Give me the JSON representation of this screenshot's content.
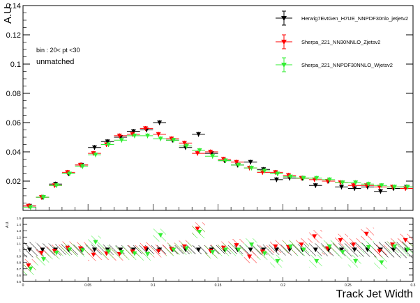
{
  "chart_data": [
    {
      "type": "scatter",
      "ylabel": "A.U.",
      "xlim": [
        0,
        0.3
      ],
      "ylim": [
        0,
        0.14
      ],
      "yticks": [
        "0",
        "0.02",
        "0.04",
        "0.06",
        "0.08",
        "0.1",
        "0.12",
        "0.14"
      ],
      "annotations": [
        "bin : 20< pt <30",
        "unmatched"
      ],
      "legend_position": "top-right",
      "x": [
        0.005,
        0.015,
        0.025,
        0.035,
        0.045,
        0.055,
        0.065,
        0.075,
        0.085,
        0.095,
        0.105,
        0.115,
        0.125,
        0.135,
        0.145,
        0.155,
        0.165,
        0.175,
        0.185,
        0.195,
        0.205,
        0.215,
        0.225,
        0.235,
        0.245,
        0.255,
        0.265,
        0.275,
        0.285,
        0.295
      ],
      "series": [
        {
          "name": "Herwig7EvtGen_H7UE_NNPDF30nlo_jetjetv2",
          "color": "#000000",
          "values": [
            0.003,
            0.009,
            0.018,
            0.025,
            0.031,
            0.043,
            0.047,
            0.05,
            0.054,
            0.055,
            0.06,
            0.048,
            0.043,
            0.052,
            0.039,
            0.034,
            0.031,
            0.033,
            0.028,
            0.021,
            0.022,
            0.022,
            0.017,
            0.02,
            0.016,
            0.015,
            0.016,
            0.013,
            0.015,
            0.016
          ]
        },
        {
          "name": "Sherpa_221_NN30NNLO_Zjetsv2",
          "color": "#ff0000",
          "values": [
            0.003,
            0.009,
            0.017,
            0.026,
            0.031,
            0.039,
            0.045,
            0.051,
            0.052,
            0.056,
            0.052,
            0.049,
            0.046,
            0.039,
            0.04,
            0.035,
            0.033,
            0.029,
            0.026,
            0.026,
            0.024,
            0.022,
            0.021,
            0.02,
            0.019,
            0.017,
            0.017,
            0.016,
            0.016,
            0.015
          ]
        },
        {
          "name": "Sherpa_221_NNPDF30NNLO_Wjetsv2",
          "color": "#33ee33",
          "values": [
            0.002,
            0.009,
            0.017,
            0.025,
            0.03,
            0.038,
            0.045,
            0.048,
            0.051,
            0.051,
            0.049,
            0.048,
            0.044,
            0.041,
            0.037,
            0.034,
            0.031,
            0.029,
            0.027,
            0.025,
            0.023,
            0.022,
            0.022,
            0.021,
            0.019,
            0.019,
            0.018,
            0.017,
            0.016,
            0.016
          ]
        }
      ]
    },
    {
      "type": "scatter",
      "xlabel": "Track Jet Width",
      "ylabel": "A.U.",
      "xlim": [
        0,
        0.3
      ],
      "ylim": [
        0.5,
        1.5
      ],
      "yticks": [
        "0.5",
        "0.6",
        "0.7",
        "0.8",
        "0.9",
        "1",
        "1.1",
        "1.2",
        "1.3",
        "1.4",
        "1.5"
      ],
      "xticks": [
        "0",
        "0.05",
        "0.1",
        "0.15",
        "0.2",
        "0.25",
        "0.3"
      ],
      "x": [
        0.005,
        0.015,
        0.025,
        0.035,
        0.045,
        0.055,
        0.065,
        0.075,
        0.085,
        0.095,
        0.105,
        0.115,
        0.125,
        0.135,
        0.145,
        0.155,
        0.165,
        0.175,
        0.185,
        0.195,
        0.205,
        0.215,
        0.225,
        0.235,
        0.245,
        0.255,
        0.265,
        0.275,
        0.285,
        0.295
      ],
      "series": [
        {
          "name": "Herwig7EvtGen_H7UE_NNPDF30nlo_jetjetv2",
          "color": "#000000",
          "values": [
            1,
            1,
            1,
            1,
            1,
            1,
            1,
            1,
            1,
            1,
            1,
            1,
            1,
            1,
            1,
            1,
            1,
            1,
            1,
            1,
            1,
            1,
            1,
            1,
            1,
            1,
            1,
            1,
            1,
            1
          ]
        },
        {
          "name": "Sherpa_221_NN30NNLO_Zjetsv2",
          "color": "#ff0000",
          "values": [
            0.75,
            0.95,
            0.98,
            1.03,
            1.02,
            0.92,
            0.94,
            0.93,
            0.97,
            1.02,
            0.98,
            1.01,
            1.05,
            1.33,
            0.98,
            1.03,
            1.07,
            0.89,
            0.97,
            1.05,
            1.04,
            1.08,
            1.21,
            1.02,
            1.15,
            1.08,
            1.25,
            0.98,
            1.08,
            1.15
          ]
        },
        {
          "name": "Sherpa_221_NNPDF30NNLO_Wjetsv2",
          "color": "#33ee33",
          "values": [
            0.7,
            0.85,
            0.95,
            1.0,
            0.99,
            1.12,
            0.97,
            0.96,
            0.94,
            0.93,
            1.23,
            1.0,
            1.02,
            1.28,
            0.96,
            1.0,
            1.0,
            1.08,
            0.94,
            0.82,
            1.05,
            1.0,
            0.82,
            1.05,
            0.96,
            0.82,
            1.04,
            0.8,
            1.05,
            1.0
          ]
        }
      ]
    }
  ]
}
